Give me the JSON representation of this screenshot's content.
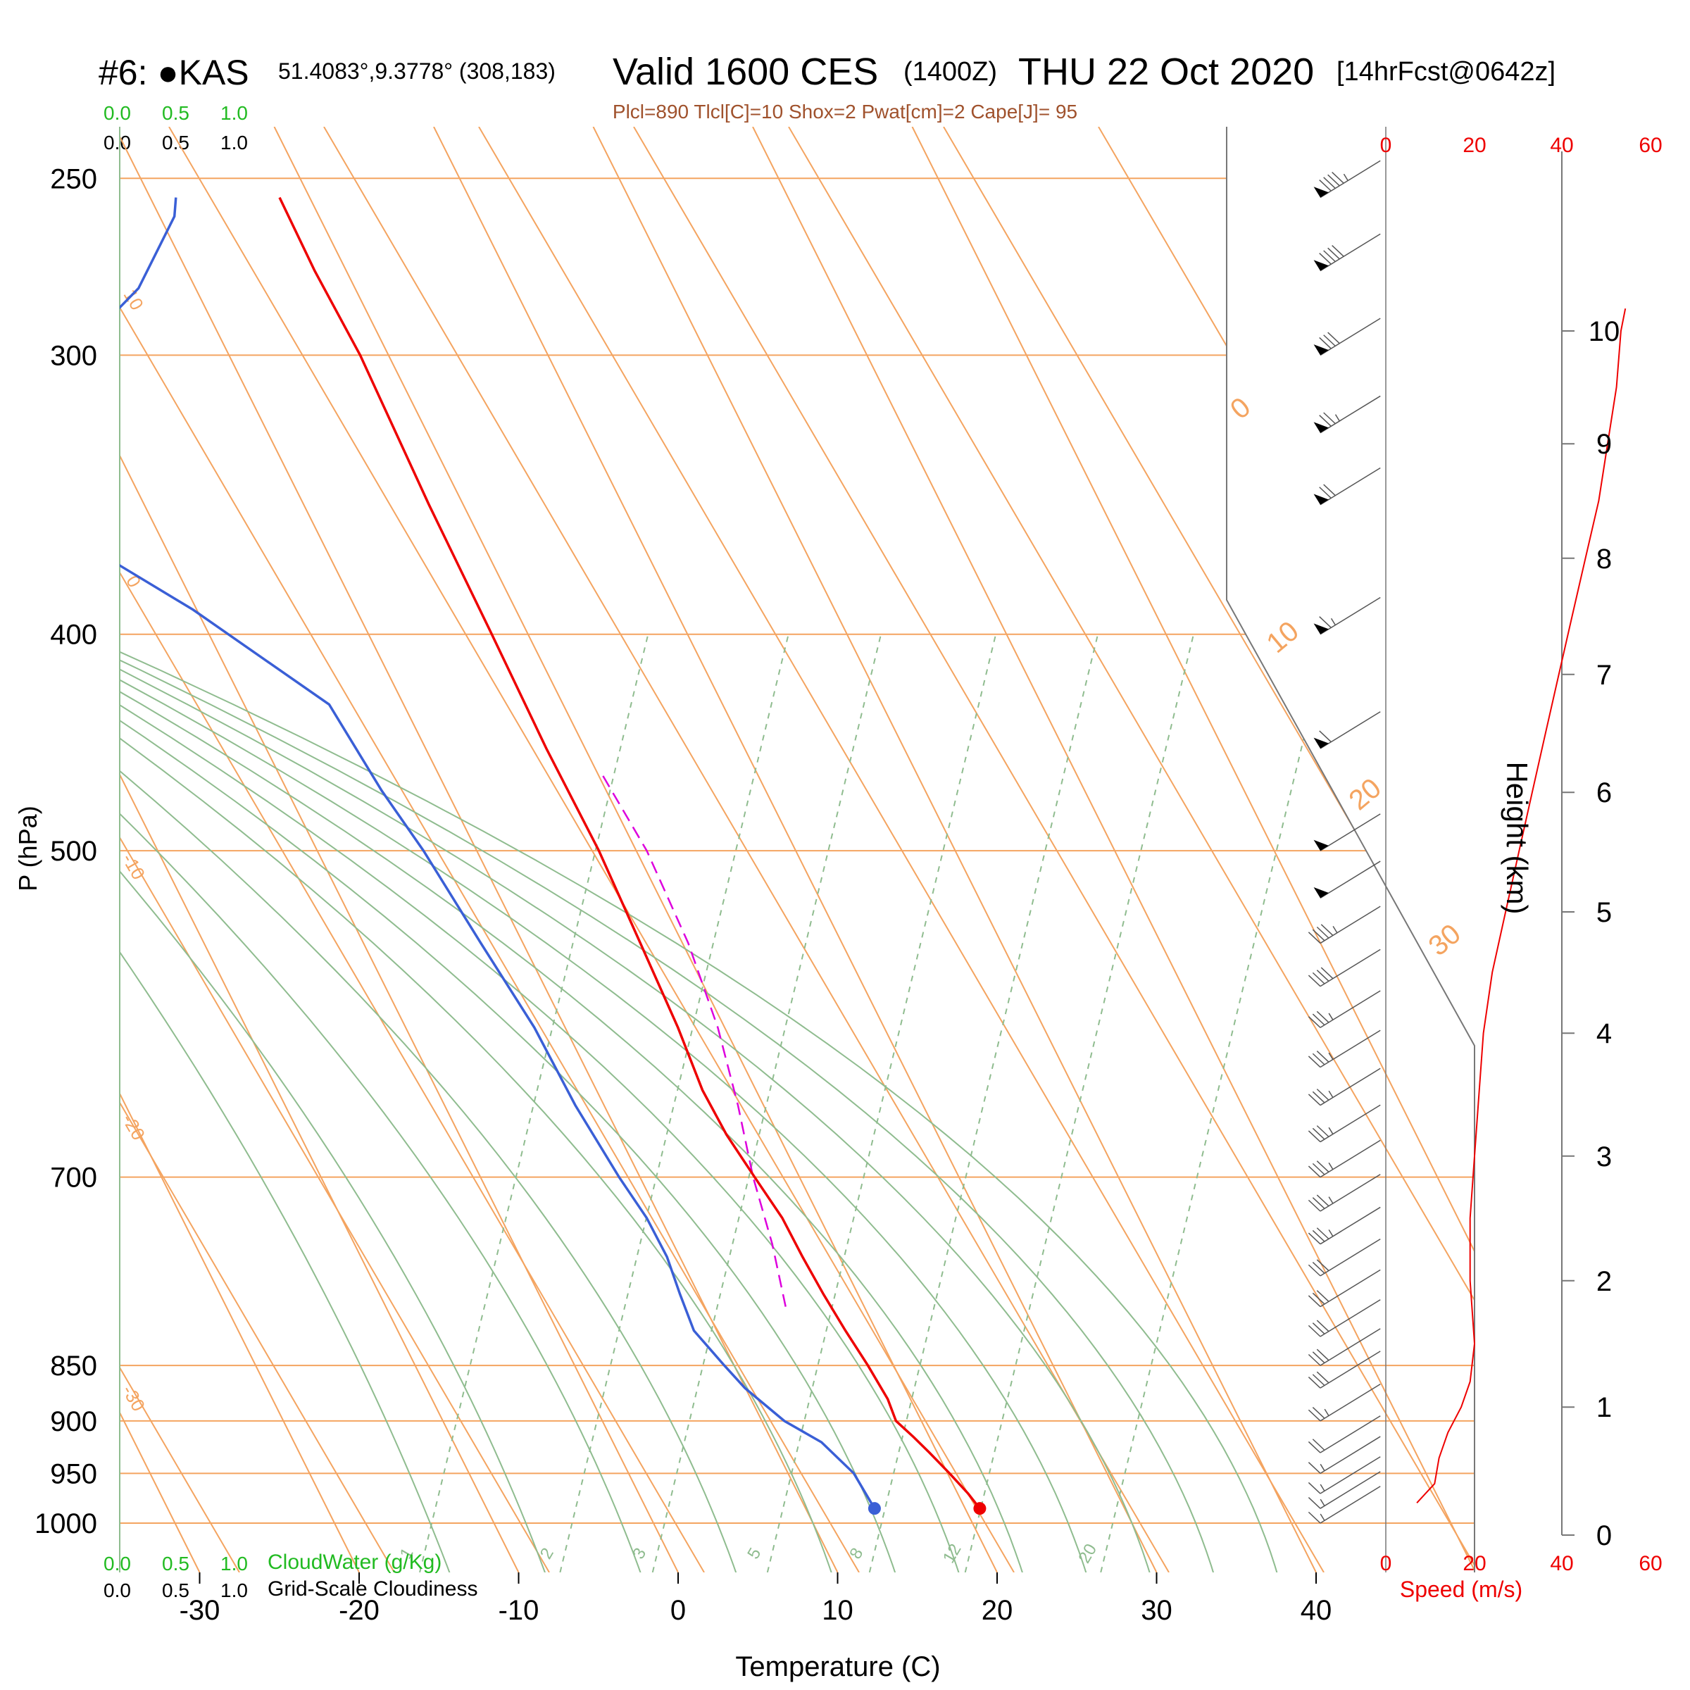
{
  "header": {
    "station": "#6: ●KAS",
    "coords": "51.4083°,9.3778° (308,183)",
    "valid": "Valid 1600 CES",
    "zulu": "(1400Z)",
    "date": "THU 22 Oct 2020",
    "forecast": "[14hrFcst@0642z]",
    "indices": "Plcl=890 Tlcl[C]=10 Shox=2 Pwat[cm]=2 Cape[J]= 95"
  },
  "scales": {
    "top_green": [
      "0.0",
      "0.5",
      "1.0"
    ],
    "top_black": [
      "0.0",
      "0.5",
      "1.0"
    ],
    "bottom_green": [
      "0.0",
      "0.5",
      "1.0"
    ],
    "bottom_black": [
      "0.0",
      "0.5",
      "1.0"
    ],
    "cloudwater_label": "CloudWater (g/Kg)",
    "cloudiness_label": "Grid-Scale Cloudiness"
  },
  "colors": {
    "temperature": "#ee0000",
    "dewpoint": "#3a5fd6",
    "parcel": "#dd00dd",
    "isotherm": "#f4a460",
    "adiabat": "#8fbc8f",
    "mixing_ratio": "#8fbc8f",
    "wind_speed": "#ee0000"
  },
  "chart_data": {
    "type": "skew-t",
    "xlabel": "Temperature (C)",
    "ylabel": "P (hPa)",
    "y2label": "Height (km)",
    "pressure_ticks": [
      250,
      300,
      400,
      500,
      700,
      850,
      900,
      950,
      1000
    ],
    "temperature_ticks": [
      "-30",
      "-20",
      "-10",
      "0",
      "10",
      "20",
      "30",
      "40"
    ],
    "height_ticks_km": [
      "0",
      "1",
      "2",
      "3",
      "4",
      "5",
      "6",
      "7",
      "8",
      "9",
      "10"
    ],
    "isotherm_labels": [
      "10",
      "0",
      "-10",
      "-20",
      "-30"
    ],
    "isotherm_labels_right": [
      "0",
      "10",
      "20",
      "30"
    ],
    "mixing_ratio_labels": [
      "1",
      "2",
      "3",
      "5",
      "8",
      "12",
      "20"
    ],
    "temperature_profile": {
      "pressure": [
        985,
        970,
        950,
        930,
        915,
        900,
        880,
        850,
        820,
        790,
        760,
        730,
        700,
        670,
        640,
        600,
        550,
        500,
        450,
        400,
        350,
        300,
        275,
        255
      ],
      "temp_c": [
        20.0,
        18.8,
        17.0,
        15.1,
        13.6,
        12.0,
        10.8,
        8.5,
        6.0,
        3.5,
        1.0,
        -1.5,
        -4.5,
        -7.6,
        -10.5,
        -14.0,
        -19.0,
        -24.5,
        -31.0,
        -38.0,
        -46.0,
        -55.0,
        -60.5,
        -65.0
      ]
    },
    "dewpoint_profile": {
      "pressure": [
        985,
        950,
        920,
        900,
        870,
        850,
        820,
        790,
        760,
        730,
        700,
        650,
        600,
        550,
        500,
        470,
        430,
        390,
        360,
        330,
        315,
        300,
        280,
        260,
        255
      ],
      "dewpoint_c": [
        13.4,
        11.0,
        8.0,
        5.0,
        1.5,
        -0.5,
        -3.5,
        -5.5,
        -7.5,
        -10.0,
        -13.0,
        -18.0,
        -23.0,
        -29.0,
        -35.5,
        -40.0,
        -46.0,
        -57.5,
        -68.0,
        -77.0,
        -76.0,
        -73.0,
        -71.0,
        -71.0,
        -71.5
      ]
    },
    "parcel_profile": {
      "pressure": [
        800,
        750,
        700,
        650,
        600,
        550,
        500,
        460
      ],
      "temp_c": [
        1.5,
        -1.3,
        -4.6,
        -7.8,
        -11.5,
        -16.0,
        -21.5,
        -27.0
      ]
    },
    "wind_barbs": {
      "pressure": [
        1000,
        985,
        970,
        950,
        930,
        900,
        870,
        850,
        825,
        800,
        775,
        750,
        725,
        700,
        675,
        650,
        625,
        600,
        575,
        550,
        525,
        500,
        450,
        400,
        350,
        325,
        300,
        275,
        255
      ],
      "speed_ms": [
        8,
        8,
        8,
        9,
        11,
        13,
        15,
        16,
        16,
        16,
        16,
        17,
        17,
        17,
        17,
        18,
        18,
        19,
        20,
        22,
        25,
        27,
        30,
        34,
        36,
        38,
        42,
        47,
        50
      ]
    },
    "wind_speed_axis": {
      "label": "Speed (m/s)",
      "ticks": [
        "0",
        "20",
        "40",
        "60"
      ]
    },
    "wind_speed_profile": {
      "height_km": [
        0.25,
        0.4,
        0.6,
        0.8,
        1.0,
        1.2,
        1.5,
        2.0,
        2.5,
        3.0,
        3.5,
        4.0,
        4.5,
        5.0,
        5.5,
        6.0,
        6.5,
        7.0,
        7.5,
        8.0,
        8.5,
        9.0,
        9.5,
        10.0,
        10.2
      ],
      "speed_ms": [
        7,
        11,
        12,
        14,
        17,
        19,
        20,
        19,
        19,
        20,
        21,
        22,
        24,
        27,
        30,
        33,
        36,
        39,
        42,
        45,
        48,
        50,
        52,
        53,
        54
      ]
    }
  }
}
